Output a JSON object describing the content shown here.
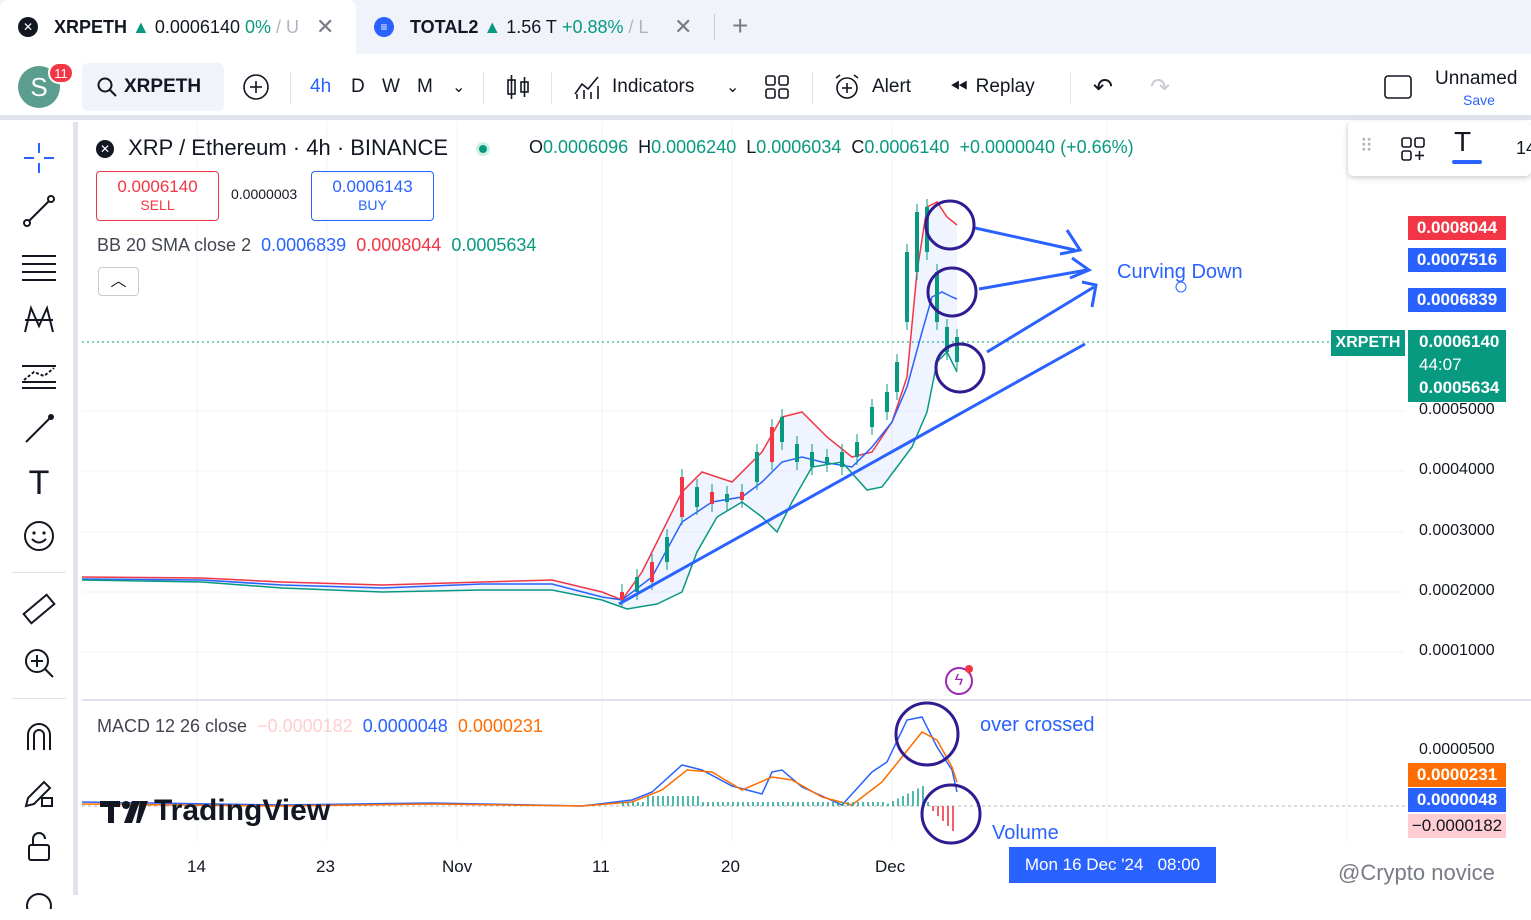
{
  "tabs": [
    {
      "symbol": "XRPETH",
      "arrow": "▲",
      "price": "0.0006140",
      "change": "0%",
      "tail": "/ U"
    },
    {
      "symbol": "TOTAL2",
      "arrow": "▲",
      "price": "1.56 T",
      "change": "+0.88%",
      "tail": "/ L"
    }
  ],
  "avatar": {
    "letter": "S",
    "badge": "11"
  },
  "toolbar": {
    "symbol": "XRPETH",
    "intervals": [
      "4h",
      "D",
      "W",
      "M"
    ],
    "indicators": "Indicators",
    "alert": "Alert",
    "replay": "Replay",
    "layout_name": "Unnamed",
    "save": "Save"
  },
  "floating": {
    "size": "14"
  },
  "header": {
    "title": "XRP / Ethereum · 4h · BINANCE",
    "o_label": "O",
    "o": "0.0006096",
    "h_label": "H",
    "h": "0.0006240",
    "l_label": "L",
    "l": "0.0006034",
    "c_label": "C",
    "c": "0.0006140",
    "change": "+0.0000040 (+0.66%)"
  },
  "trade": {
    "sell_price": "0.0006140",
    "sell_label": "SELL",
    "spread": "0.0000003",
    "buy_price": "0.0006143",
    "buy_label": "BUY"
  },
  "bb": {
    "label": "BB 20 SMA close 2",
    "basis": "0.0006839",
    "upper": "0.0008044",
    "lower": "0.0005634"
  },
  "macd": {
    "label": "MACD 12 26 close",
    "hist": "−0.0000182",
    "macd": "0.0000048",
    "signal": "0.0000231"
  },
  "price_axis": [
    "0.0005000",
    "0.0004000",
    "0.0003000",
    "0.0002000",
    "0.0001000"
  ],
  "macd_axis": [
    "0.0000500"
  ],
  "price_tags": {
    "upper": "0.0008044",
    "mid1": "0.0007516",
    "basis": "0.0006839",
    "symbol": "XRPETH",
    "last": "0.0006140",
    "countdown": "44:07",
    "lower": "0.0005634"
  },
  "macd_tags": {
    "signal": "0.0000231",
    "macd": "0.0000048",
    "hist": "−0.0000182"
  },
  "dates": [
    "14",
    "23",
    "Nov",
    "11",
    "20",
    "Dec"
  ],
  "crosshair_date": "Mon 16 Dec '24   08:00",
  "annotations": {
    "curving": "Curving Down",
    "crossed": "over crossed",
    "volume": "Volume"
  },
  "brand": "TradingView",
  "watermark": "@Crypto novice",
  "colors": {
    "up": "#089981",
    "down": "#f23645",
    "blue": "#2962ff",
    "orange": "#ff6d00",
    "purple": "#311b92"
  }
}
